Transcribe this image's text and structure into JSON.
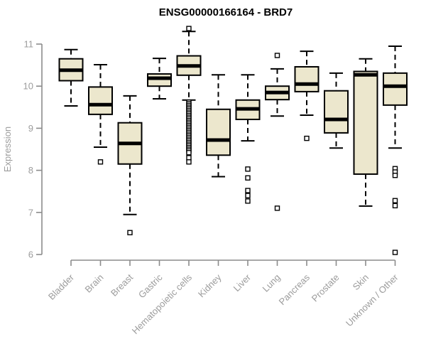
{
  "title": "ENSG00000166164 - BRD7",
  "colors": {
    "background": "#ffffff",
    "box_fill": "#ece7cd",
    "box_border": "#000000",
    "median": "#000000",
    "whisker": "#000000",
    "outlier_stroke": "#000000",
    "outlier_fill": "#ffffff",
    "axis_line": "#8c8c8c",
    "axis_text": "#9c9c9c",
    "title_text": "#000000"
  },
  "chart_data": {
    "type": "boxplot",
    "title": "ENSG00000166164 - BRD7",
    "xlabel": "",
    "ylabel": "Expression",
    "ylim": [
      6,
      11
    ],
    "yticks": [
      6,
      7,
      8,
      9,
      10,
      11
    ],
    "grid": false,
    "legend": "none",
    "categories": [
      "Bladder",
      "Brain",
      "Breast",
      "Gastric",
      "Hematopoietic cells",
      "Kidney",
      "Liver",
      "Lung",
      "Pancreas",
      "Prostate",
      "Skin",
      "Unknown / Other"
    ],
    "series": [
      {
        "category": "Bladder",
        "whisker_low": 9.53,
        "q1": 10.13,
        "median": 10.38,
        "q3": 10.65,
        "whisker_high": 10.87,
        "outliers": []
      },
      {
        "category": "Brain",
        "whisker_low": 8.55,
        "q1": 9.33,
        "median": 9.56,
        "q3": 9.98,
        "whisker_high": 10.51,
        "outliers": [
          8.2
        ]
      },
      {
        "category": "Breast",
        "whisker_low": 6.95,
        "q1": 8.15,
        "median": 8.64,
        "q3": 9.13,
        "whisker_high": 9.77,
        "outliers": [
          6.52
        ]
      },
      {
        "category": "Gastric",
        "whisker_low": 9.7,
        "q1": 10.0,
        "median": 10.19,
        "q3": 10.29,
        "whisker_high": 10.66,
        "outliers": []
      },
      {
        "category": "Hematopoietic cells",
        "whisker_low": 9.67,
        "q1": 10.26,
        "median": 10.48,
        "q3": 10.72,
        "whisker_high": 11.3,
        "outliers": [
          11.37,
          9.62,
          9.58,
          9.54,
          9.5,
          9.46,
          9.42,
          9.38,
          9.34,
          9.3,
          9.26,
          9.22,
          9.18,
          9.14,
          9.1,
          9.06,
          9.02,
          8.98,
          8.94,
          8.9,
          8.86,
          8.82,
          8.78,
          8.74,
          8.7,
          8.66,
          8.62,
          8.58,
          8.54,
          8.5,
          8.46,
          8.42,
          8.3,
          8.2
        ]
      },
      {
        "category": "Kidney",
        "whisker_low": 7.85,
        "q1": 8.36,
        "median": 8.72,
        "q3": 9.45,
        "whisker_high": 10.27,
        "outliers": []
      },
      {
        "category": "Liver",
        "whisker_low": 8.7,
        "q1": 9.21,
        "median": 9.46,
        "q3": 9.67,
        "whisker_high": 10.27,
        "outliers": [
          8.03,
          7.82,
          7.52,
          7.4,
          7.27
        ]
      },
      {
        "category": "Lung",
        "whisker_low": 9.29,
        "q1": 9.68,
        "median": 9.85,
        "q3": 10.0,
        "whisker_high": 10.41,
        "outliers": [
          10.73,
          7.1
        ]
      },
      {
        "category": "Pancreas",
        "whisker_low": 9.31,
        "q1": 9.87,
        "median": 10.05,
        "q3": 10.46,
        "whisker_high": 10.83,
        "outliers": [
          8.76
        ]
      },
      {
        "category": "Prostate",
        "whisker_low": 8.53,
        "q1": 8.89,
        "median": 9.21,
        "q3": 9.89,
        "whisker_high": 10.31,
        "outliers": []
      },
      {
        "category": "Skin",
        "whisker_low": 7.15,
        "q1": 7.91,
        "median": 10.27,
        "q3": 10.35,
        "whisker_high": 10.65,
        "outliers": []
      },
      {
        "category": "Unknown / Other",
        "whisker_low": 8.53,
        "q1": 9.55,
        "median": 10.0,
        "q3": 10.31,
        "whisker_high": 10.95,
        "outliers": [
          8.04,
          7.96,
          7.88,
          7.28,
          7.16,
          6.05
        ]
      }
    ]
  }
}
